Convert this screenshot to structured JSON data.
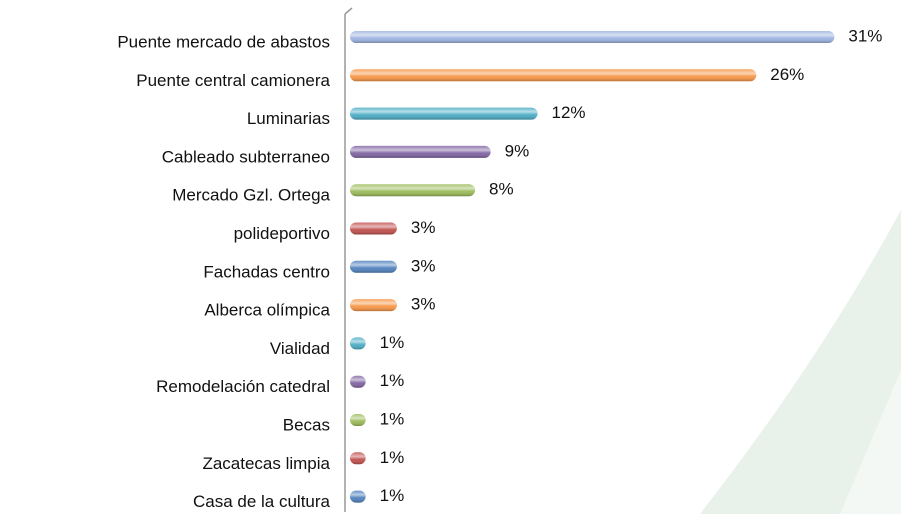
{
  "chart_data": {
    "type": "bar",
    "orientation": "horizontal",
    "categories": [
      "Puente mercado de abastos",
      "Puente central camionera",
      "Luminarias",
      "Cableado subterraneo",
      "Mercado Gzl. Ortega",
      "polideportivo",
      "Fachadas centro",
      "Alberca olímpica",
      "Vialidad",
      "Remodelación catedral",
      "Becas",
      "Zacatecas limpia",
      "Casa de la cultura"
    ],
    "values": [
      31,
      26,
      12,
      9,
      8,
      3,
      3,
      3,
      1,
      1,
      1,
      1,
      1
    ],
    "value_labels": [
      "31%",
      "26%",
      "12%",
      "9%",
      "8%",
      "3%",
      "3%",
      "3%",
      "1%",
      "1%",
      "1%",
      "1%",
      "1%"
    ],
    "colors": [
      "#9db3e0",
      "#f79646",
      "#4bacc6",
      "#8064a2",
      "#9bbb59",
      "#c0504d",
      "#4f81bd",
      "#f79646",
      "#4bacc6",
      "#8064a2",
      "#9bbb59",
      "#c0504d",
      "#4f81bd"
    ],
    "xlim": [
      0,
      32
    ]
  }
}
